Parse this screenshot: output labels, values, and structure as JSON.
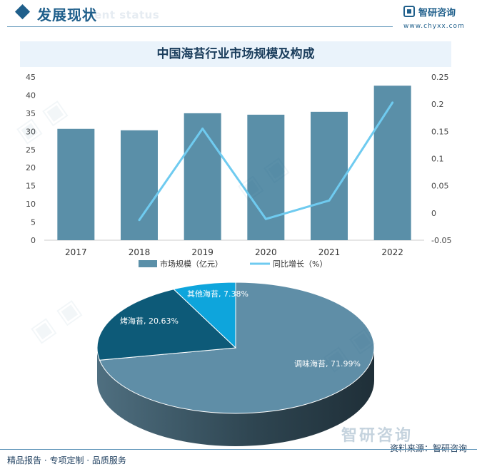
{
  "header": {
    "title": "发展现状",
    "subtitle_en": "ent status",
    "brand_name": "智研咨询",
    "brand_url": "www.chyxx.com"
  },
  "chart_data": [
    {
      "type": "bar+line",
      "title": "中国海苔行业市场规模及构成",
      "categories": [
        "2017",
        "2018",
        "2019",
        "2020",
        "2021",
        "2022"
      ],
      "series": [
        {
          "name": "市场规模（亿元）",
          "type": "bar",
          "axis": "left",
          "color": "#5a8fa8",
          "values": [
            30.7,
            30.3,
            35.0,
            34.6,
            35.4,
            42.6
          ]
        },
        {
          "name": "同比增长（%）",
          "type": "line",
          "axis": "right",
          "color": "#6fcbf0",
          "values": [
            null,
            -0.013,
            0.155,
            -0.011,
            0.023,
            0.203
          ]
        }
      ],
      "y_left": {
        "min": 0,
        "max": 45,
        "ticks": [
          0,
          5,
          10,
          15,
          20,
          25,
          30,
          35,
          40,
          45
        ]
      },
      "y_right": {
        "min": -0.05,
        "max": 0.25,
        "ticks": [
          "-0.05",
          "0",
          "0.05",
          "0.1",
          "0.15",
          "0.2",
          "0.25"
        ]
      },
      "legend": "bottom-center",
      "grid": false
    },
    {
      "type": "pie",
      "style": "3d",
      "slices": [
        {
          "label": "调味海苔",
          "value": 71.99,
          "display": "调味海苔, 71.99%",
          "color": "#5f8ea7"
        },
        {
          "label": "烤海苔",
          "value": 20.63,
          "display": "烤海苔, 20.63%",
          "color": "#0d5a78"
        },
        {
          "label": "其他海苔",
          "value": 7.38,
          "display": "其他海苔, 7.38%",
          "color": "#0ea5dc"
        }
      ]
    }
  ],
  "footer": {
    "left_text": "精品报告 · 专项定制 · 品质服务",
    "source_text": "资料来源：智研咨询",
    "brand_mark": "智研咨询"
  }
}
